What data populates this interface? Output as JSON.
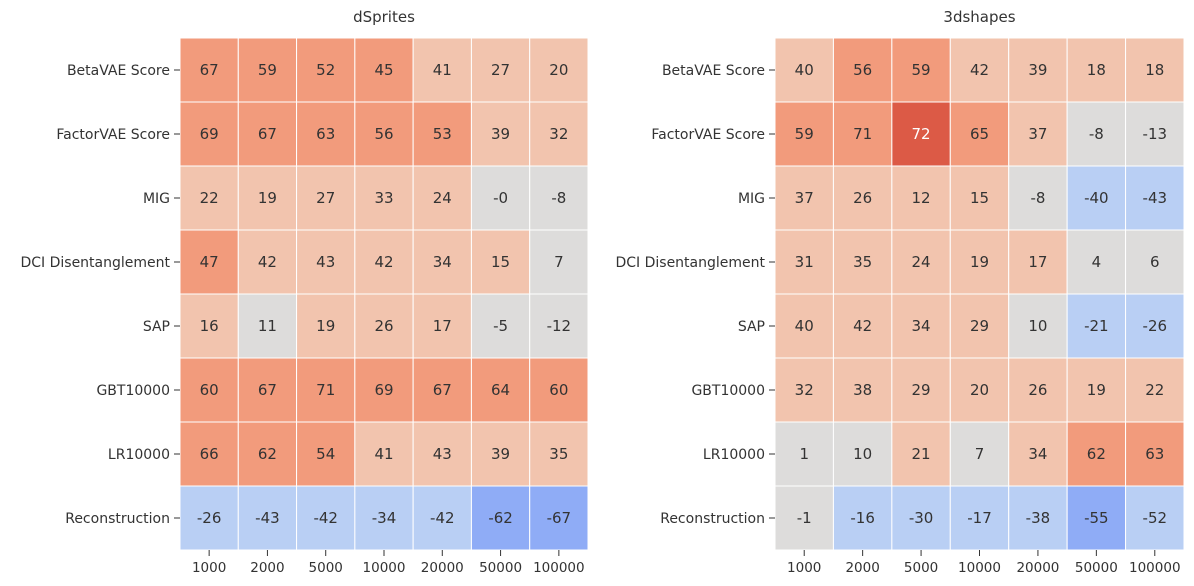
{
  "palette": {
    "warm_strong": "#dc5a46",
    "warm_mid": "#f29b7c",
    "warm_light": "#f2c4ae",
    "neutral": "#dddcdb",
    "cool_light": "#b9cff4",
    "cool_mid": "#8facf6",
    "text_dark": "#333333",
    "text_light": "#ffffff"
  },
  "chart_data": [
    {
      "type": "heatmap",
      "title": "dSprites",
      "rows": [
        "BetaVAE Score",
        "FactorVAE Score",
        "MIG",
        "DCI Disentanglement",
        "SAP",
        "GBT10000",
        "LR10000",
        "Reconstruction"
      ],
      "columns": [
        "1000",
        "2000",
        "5000",
        "10000",
        "20000",
        "50000",
        "100000"
      ],
      "values": [
        [
          67,
          59,
          52,
          45,
          41,
          27,
          20
        ],
        [
          69,
          67,
          63,
          56,
          53,
          39,
          32
        ],
        [
          22,
          19,
          27,
          33,
          24,
          "-0",
          -8
        ],
        [
          47,
          42,
          43,
          42,
          34,
          15,
          7
        ],
        [
          16,
          11,
          19,
          26,
          17,
          -5,
          -12
        ],
        [
          60,
          67,
          71,
          69,
          67,
          64,
          60
        ],
        [
          66,
          62,
          54,
          41,
          43,
          39,
          35
        ],
        [
          -26,
          -43,
          -42,
          -34,
          -42,
          -62,
          -67
        ]
      ]
    },
    {
      "type": "heatmap",
      "title": "3dshapes",
      "rows": [
        "BetaVAE Score",
        "FactorVAE Score",
        "MIG",
        "DCI Disentanglement",
        "SAP",
        "GBT10000",
        "LR10000",
        "Reconstruction"
      ],
      "columns": [
        "1000",
        "2000",
        "5000",
        "10000",
        "20000",
        "50000",
        "100000"
      ],
      "values": [
        [
          40,
          56,
          59,
          42,
          39,
          18,
          18
        ],
        [
          59,
          71,
          72,
          65,
          37,
          -8,
          -13
        ],
        [
          37,
          26,
          12,
          15,
          -8,
          -40,
          -43
        ],
        [
          31,
          35,
          24,
          19,
          17,
          4,
          6
        ],
        [
          40,
          42,
          34,
          29,
          10,
          -21,
          -26
        ],
        [
          32,
          38,
          29,
          20,
          26,
          19,
          22
        ],
        [
          1,
          10,
          21,
          7,
          34,
          62,
          63
        ],
        [
          -1,
          -16,
          -30,
          -17,
          -38,
          -55,
          -52
        ]
      ]
    }
  ]
}
